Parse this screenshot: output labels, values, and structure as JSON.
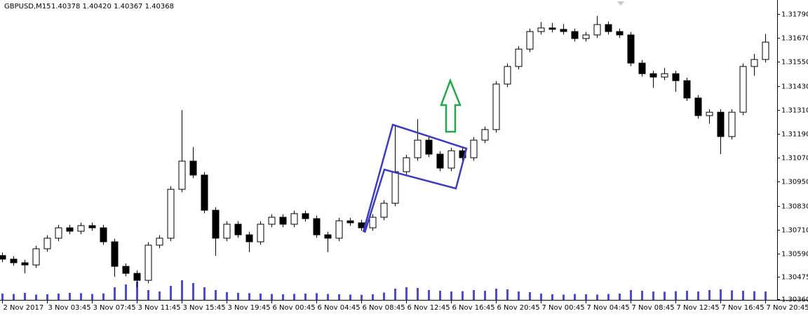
{
  "chart_data": {
    "type": "candlestick",
    "title": "GBPUSD,M15",
    "quote": "1.40378 1.40420 1.40367 1.40368",
    "up_fill": "#ffffff",
    "down_fill": "#000000",
    "candle_color": "#000000",
    "volume_color": "#4b4bd0",
    "x": [
      0,
      4,
      8,
      12,
      16,
      20,
      24,
      28,
      32,
      36,
      40,
      44,
      48,
      52,
      56,
      60,
      64,
      68,
      72,
      76,
      80,
      84,
      88,
      92,
      96,
      100,
      104,
      108,
      112,
      116,
      120,
      124,
      128,
      132,
      136,
      140,
      144,
      148,
      152,
      156,
      160,
      164,
      168,
      172,
      176,
      180,
      184,
      188,
      192,
      196,
      200,
      204,
      208,
      212,
      216,
      220,
      224,
      228,
      232,
      236,
      240,
      244,
      248,
      252,
      256,
      260,
      264,
      268,
      272
    ],
    "open": [
      1.3058,
      1.30562,
      1.30544,
      1.30533,
      1.30614,
      1.30667,
      1.30719,
      1.30702,
      1.3073,
      1.30719,
      1.30649,
      1.30526,
      1.30491,
      1.30456,
      1.30632,
      1.30667,
      1.30912,
      1.31053,
      1.30983,
      1.30807,
      1.30667,
      1.30737,
      1.30684,
      1.30649,
      1.30737,
      1.30772,
      1.30737,
      1.3079,
      1.30765,
      1.30684,
      1.30667,
      1.30754,
      1.30744,
      1.30719,
      1.30772,
      1.30842,
      1.31,
      1.3107,
      1.31158,
      1.31088,
      1.31018,
      1.31105,
      1.3107,
      1.31158,
      1.31211,
      1.31439,
      1.31527,
      1.31614,
      1.31702,
      1.3172,
      1.31713,
      1.31702,
      1.31667,
      1.31685,
      1.31737,
      1.31702,
      1.31685,
      1.31544,
      1.31491,
      1.31474,
      1.31491,
      1.31456,
      1.31369,
      1.31281,
      1.31298,
      1.31176,
      1.31298,
      1.31527,
      1.31562
    ],
    "high": [
      1.30595,
      1.30577,
      1.30559,
      1.30629,
      1.30682,
      1.30734,
      1.30734,
      1.30745,
      1.30745,
      1.30734,
      1.30664,
      1.30541,
      1.30506,
      1.30647,
      1.30682,
      1.30927,
      1.31309,
      1.31123,
      1.30998,
      1.30822,
      1.30752,
      1.30752,
      1.30699,
      1.30752,
      1.30787,
      1.30787,
      1.30805,
      1.30805,
      1.3078,
      1.30699,
      1.30769,
      1.30769,
      1.30759,
      1.30787,
      1.30857,
      1.31228,
      1.31085,
      1.31263,
      1.31173,
      1.31103,
      1.3112,
      1.3112,
      1.31173,
      1.31226,
      1.31454,
      1.31542,
      1.31629,
      1.31717,
      1.3175,
      1.31745,
      1.3174,
      1.31717,
      1.317,
      1.3178,
      1.31752,
      1.31717,
      1.317,
      1.31559,
      1.31506,
      1.3152,
      1.31506,
      1.31471,
      1.31384,
      1.31313,
      1.31313,
      1.31313,
      1.31542,
      1.3159,
      1.3169
    ],
    "low": [
      1.30547,
      1.30529,
      1.30491,
      1.30518,
      1.30599,
      1.30652,
      1.30687,
      1.30687,
      1.30704,
      1.30634,
      1.30474,
      1.30476,
      1.30421,
      1.30441,
      1.30617,
      1.30652,
      1.30897,
      1.30968,
      1.30792,
      1.30579,
      1.30652,
      1.30669,
      1.30596,
      1.30634,
      1.30722,
      1.30722,
      1.30722,
      1.3075,
      1.30669,
      1.30596,
      1.30652,
      1.30729,
      1.30704,
      1.30704,
      1.30757,
      1.30827,
      1.30985,
      1.31055,
      1.31073,
      1.31003,
      1.31003,
      1.31055,
      1.31055,
      1.31143,
      1.31196,
      1.31424,
      1.31512,
      1.31599,
      1.31687,
      1.31698,
      1.31687,
      1.31652,
      1.31652,
      1.3167,
      1.31687,
      1.3167,
      1.31529,
      1.31476,
      1.3142,
      1.31459,
      1.314,
      1.31354,
      1.31266,
      1.3124,
      1.31088,
      1.31161,
      1.31283,
      1.3148,
      1.31547
    ],
    "close": [
      1.30562,
      1.30544,
      1.30533,
      1.30614,
      1.30667,
      1.30719,
      1.30702,
      1.3073,
      1.30719,
      1.30649,
      1.30526,
      1.30491,
      1.30456,
      1.30632,
      1.30667,
      1.30912,
      1.31053,
      1.30983,
      1.30807,
      1.30667,
      1.30737,
      1.30684,
      1.30649,
      1.30737,
      1.30772,
      1.30737,
      1.3079,
      1.30765,
      1.30684,
      1.30667,
      1.30754,
      1.30744,
      1.30719,
      1.30772,
      1.30842,
      1.31,
      1.3107,
      1.31158,
      1.31088,
      1.31018,
      1.31105,
      1.3107,
      1.31158,
      1.31211,
      1.31439,
      1.31527,
      1.31614,
      1.31702,
      1.3172,
      1.31713,
      1.31702,
      1.31667,
      1.31685,
      1.31737,
      1.31702,
      1.31685,
      1.31544,
      1.31491,
      1.31474,
      1.31491,
      1.31456,
      1.31369,
      1.31281,
      1.31298,
      1.31176,
      1.31298,
      1.31527,
      1.31562,
      1.31649
    ],
    "volumes": [
      450,
      420,
      500,
      380,
      400,
      450,
      500,
      480,
      420,
      460,
      900,
      1100,
      1300,
      700,
      600,
      1000,
      1400,
      1200,
      900,
      700,
      550,
      500,
      480,
      450,
      420,
      400,
      430,
      450,
      480,
      420,
      400,
      380,
      360,
      400,
      520,
      800,
      900,
      850,
      700,
      650,
      600,
      620,
      700,
      650,
      800,
      750,
      600,
      550,
      450,
      400,
      380,
      420,
      400,
      380,
      420,
      450,
      700,
      650,
      600,
      580,
      620,
      650,
      600,
      700,
      750,
      680,
      650,
      620,
      600
    ],
    "volume_ylim": [
      0,
      3000
    ],
    "xlim": [
      -0.75,
      276.25
    ],
    "ylim": [
      1.30358,
      1.3186
    ],
    "xticks": [
      {
        "value": 0,
        "label": "2 Nov 2017"
      },
      {
        "value": 16,
        "label": "3 Nov 03:45"
      },
      {
        "value": 32,
        "label": "3 Nov 07:45"
      },
      {
        "value": 48,
        "label": "3 Nov 11:45"
      },
      {
        "value": 64,
        "label": "3 Nov 15:45"
      },
      {
        "value": 80,
        "label": "3 Nov 19:45"
      },
      {
        "value": 96,
        "label": "6 Nov 00:45"
      },
      {
        "value": 112,
        "label": "6 Nov 04:45"
      },
      {
        "value": 128,
        "label": "6 Nov 08:45"
      },
      {
        "value": 144,
        "label": "6 Nov 12:45"
      },
      {
        "value": 160,
        "label": "6 Nov 16:45"
      },
      {
        "value": 176,
        "label": "6 Nov 20:45"
      },
      {
        "value": 192,
        "label": "7 Nov 00:45"
      },
      {
        "value": 208,
        "label": "7 Nov 04:45"
      },
      {
        "value": 224,
        "label": "7 Nov 08:45"
      },
      {
        "value": 240,
        "label": "7 Nov 12:45"
      },
      {
        "value": 256,
        "label": "7 Nov 16:45"
      },
      {
        "value": 272,
        "label": "7 Nov 20:45"
      }
    ],
    "yticks": [
      {
        "value": 1.3179,
        "label": "1.31790"
      },
      {
        "value": 1.3167,
        "label": "1.31670"
      },
      {
        "value": 1.3155,
        "label": "1.31550"
      },
      {
        "value": 1.3143,
        "label": "1.31430"
      },
      {
        "value": 1.3131,
        "label": "1.31310"
      },
      {
        "value": 1.3119,
        "label": "1.31190"
      },
      {
        "value": 1.3107,
        "label": "1.31070"
      },
      {
        "value": 1.3095,
        "label": "1.30950"
      },
      {
        "value": 1.3083,
        "label": "1.30830"
      },
      {
        "value": 1.3071,
        "label": "1.30710"
      },
      {
        "value": 1.3059,
        "label": "1.30590"
      },
      {
        "value": 1.30475,
        "label": "1.30475"
      },
      {
        "value": 1.3036,
        "label": "1.30360"
      }
    ]
  }
}
